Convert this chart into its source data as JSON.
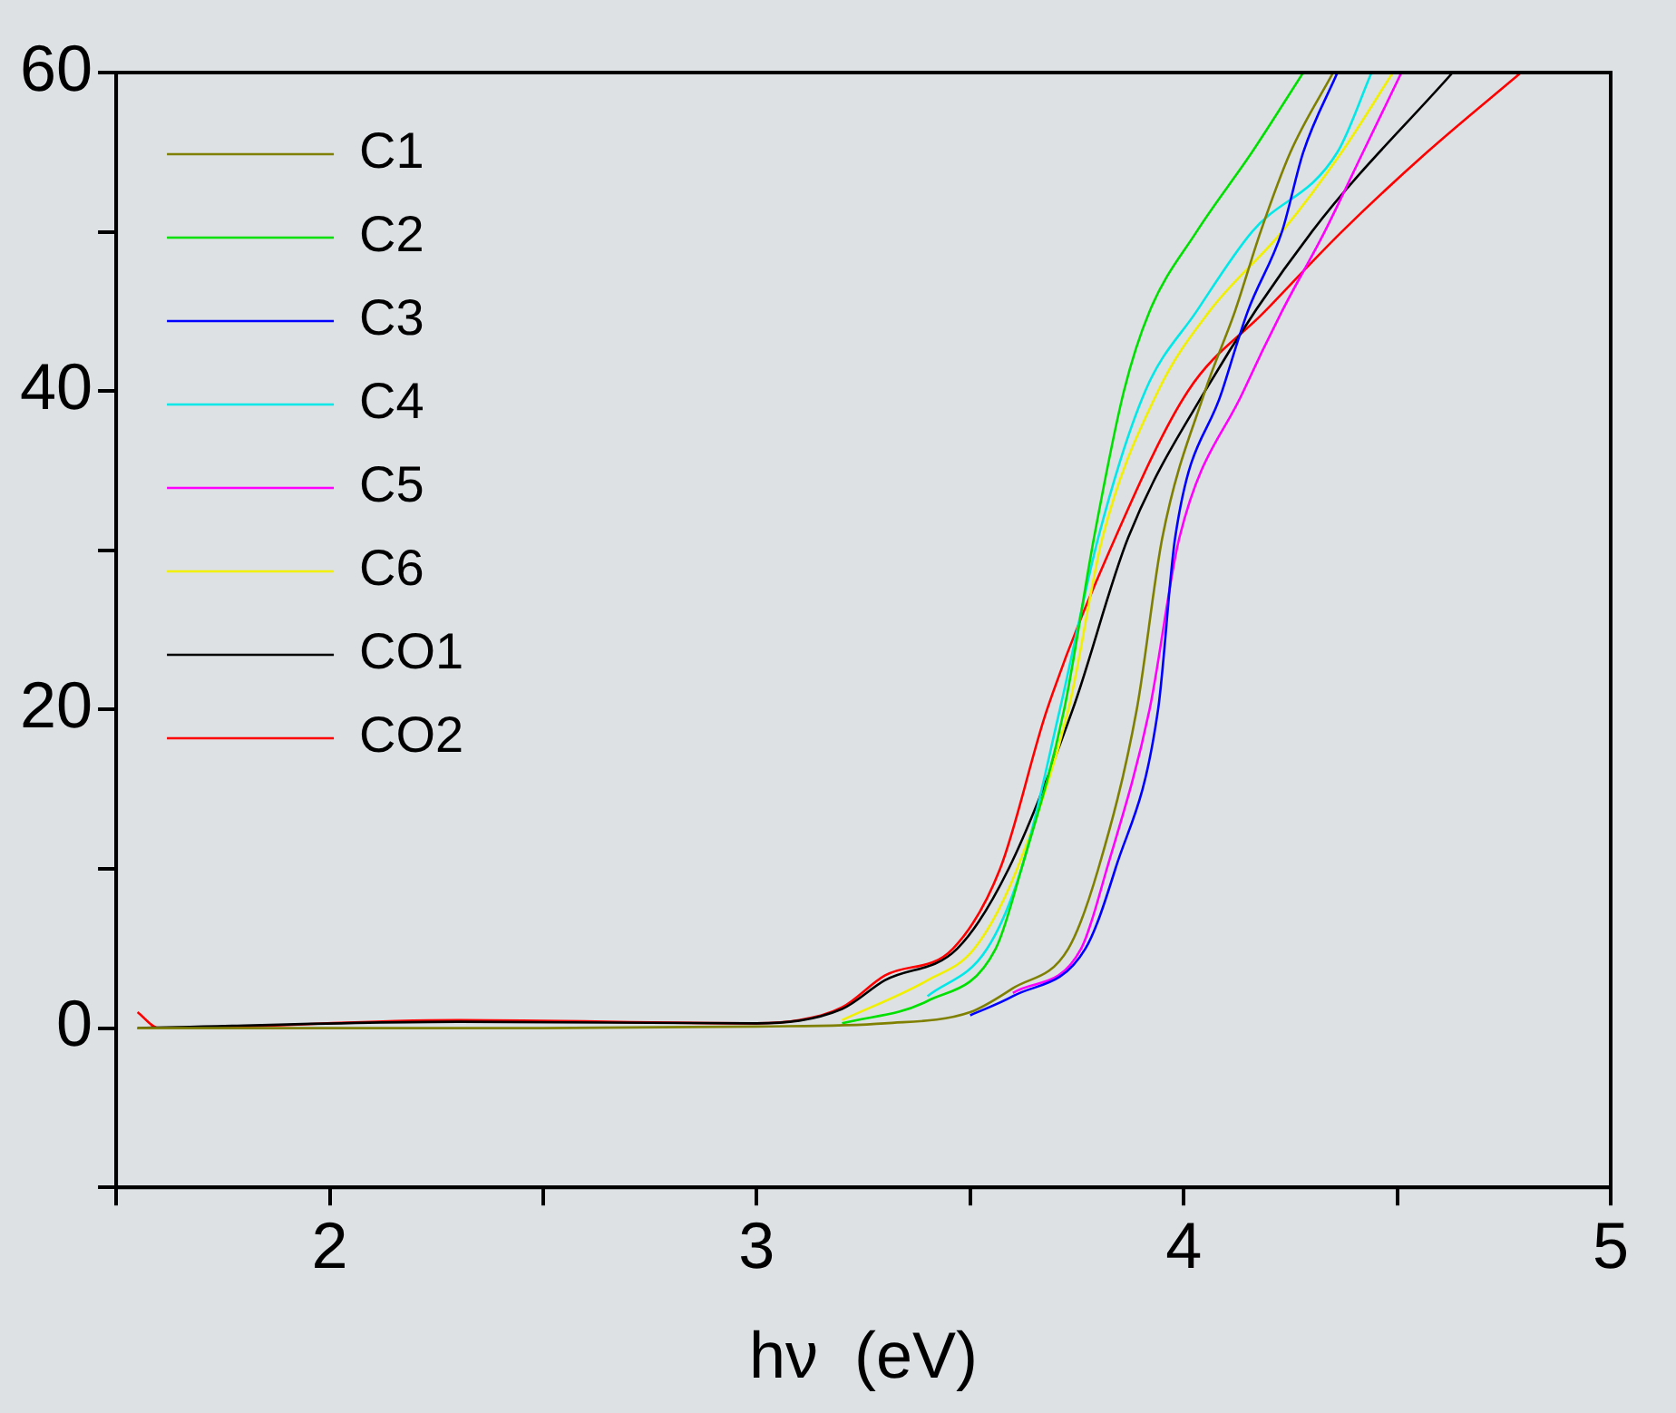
{
  "chart_data": {
    "type": "line",
    "xlabel": "hν  (eV)",
    "xlim": [
      1.5,
      5
    ],
    "ylim": [
      -10,
      60
    ],
    "xticks": [
      {
        "value": 1.5,
        "label": null
      },
      2,
      {
        "value": 2.5,
        "label": null
      },
      3,
      {
        "value": 3.5,
        "label": null
      },
      4,
      {
        "value": 4.5,
        "label": null
      },
      5
    ],
    "yticks": [
      {
        "value": -10,
        "label": null
      },
      0,
      {
        "value": 10,
        "label": null
      },
      20,
      {
        "value": 30,
        "label": null
      },
      40,
      {
        "value": 50,
        "label": null
      },
      60
    ],
    "legend": "top left",
    "series": [
      {
        "name": "C1",
        "color": "#808000",
        "x": [
          1.55,
          2.5,
          3.0,
          3.3,
          3.5,
          3.6,
          3.73,
          3.8,
          3.89,
          3.95,
          4.05,
          4.12,
          4.18,
          4.25,
          4.35
        ],
        "values": [
          0,
          0,
          0.1,
          0.3,
          1.0,
          2.5,
          5,
          10,
          20,
          30.8,
          40,
          45,
          50,
          55,
          60
        ]
      },
      {
        "name": "C2",
        "color": "#00e000",
        "x": [
          3.2,
          3.4,
          3.56,
          3.62,
          3.72,
          3.79,
          3.86,
          3.92,
          4.03,
          4.16,
          4.28
        ],
        "values": [
          0.3,
          1.7,
          5,
          10,
          20,
          30.8,
          40,
          45,
          50,
          55,
          60
        ]
      },
      {
        "name": "C3",
        "color": "#0000ff",
        "x": [
          3.5,
          3.6,
          3.77,
          3.84,
          3.94,
          3.98,
          4.09,
          4.15,
          4.23,
          4.28,
          4.36
        ],
        "values": [
          0.8,
          2.0,
          5,
          10,
          20,
          30.8,
          40,
          45,
          50,
          55,
          60
        ]
      },
      {
        "name": "C4",
        "color": "#00e8e8",
        "x": [
          3.4,
          3.54,
          3.62,
          3.71,
          3.8,
          3.91,
          4.03,
          4.16,
          4.36,
          4.44
        ],
        "values": [
          2.0,
          5,
          10,
          20,
          30.8,
          40,
          45,
          50,
          55,
          60
        ]
      },
      {
        "name": "C5",
        "color": "#ff00ff",
        "x": [
          3.6,
          3.76,
          3.82,
          3.92,
          3.99,
          4.14,
          4.23,
          4.33,
          4.42,
          4.51
        ],
        "values": [
          2.2,
          5,
          10,
          20,
          30.8,
          40,
          45,
          50,
          55,
          60
        ]
      },
      {
        "name": "C6",
        "color": "#f0f000",
        "x": [
          3.2,
          3.4,
          3.51,
          3.61,
          3.73,
          3.81,
          3.94,
          4.06,
          4.23,
          4.37,
          4.49
        ],
        "values": [
          0.5,
          3.0,
          5,
          10,
          20,
          30.8,
          40,
          45,
          50,
          55,
          60
        ]
      },
      {
        "name": "CO1",
        "color": "#000000",
        "x": [
          1.55,
          2.3,
          3.0,
          3.2,
          3.3,
          3.47,
          3.59,
          3.74,
          3.87,
          4.05,
          4.3,
          4.63
        ],
        "values": [
          0,
          0.4,
          0.3,
          1.2,
          3.0,
          5,
          10,
          20,
          30.8,
          40,
          50,
          60
        ]
      },
      {
        "name": "CO2",
        "color": "#ff0000",
        "x": [
          1.55,
          1.6,
          2.3,
          3.0,
          3.1,
          3.2,
          3.3,
          3.46,
          3.57,
          3.68,
          3.84,
          4.01,
          4.19,
          4.37,
          4.57,
          4.79
        ],
        "values": [
          1,
          0,
          0.5,
          0.3,
          0.5,
          1.3,
          3.3,
          5,
          10,
          20,
          30.8,
          40,
          45,
          50,
          55,
          60
        ]
      }
    ]
  }
}
